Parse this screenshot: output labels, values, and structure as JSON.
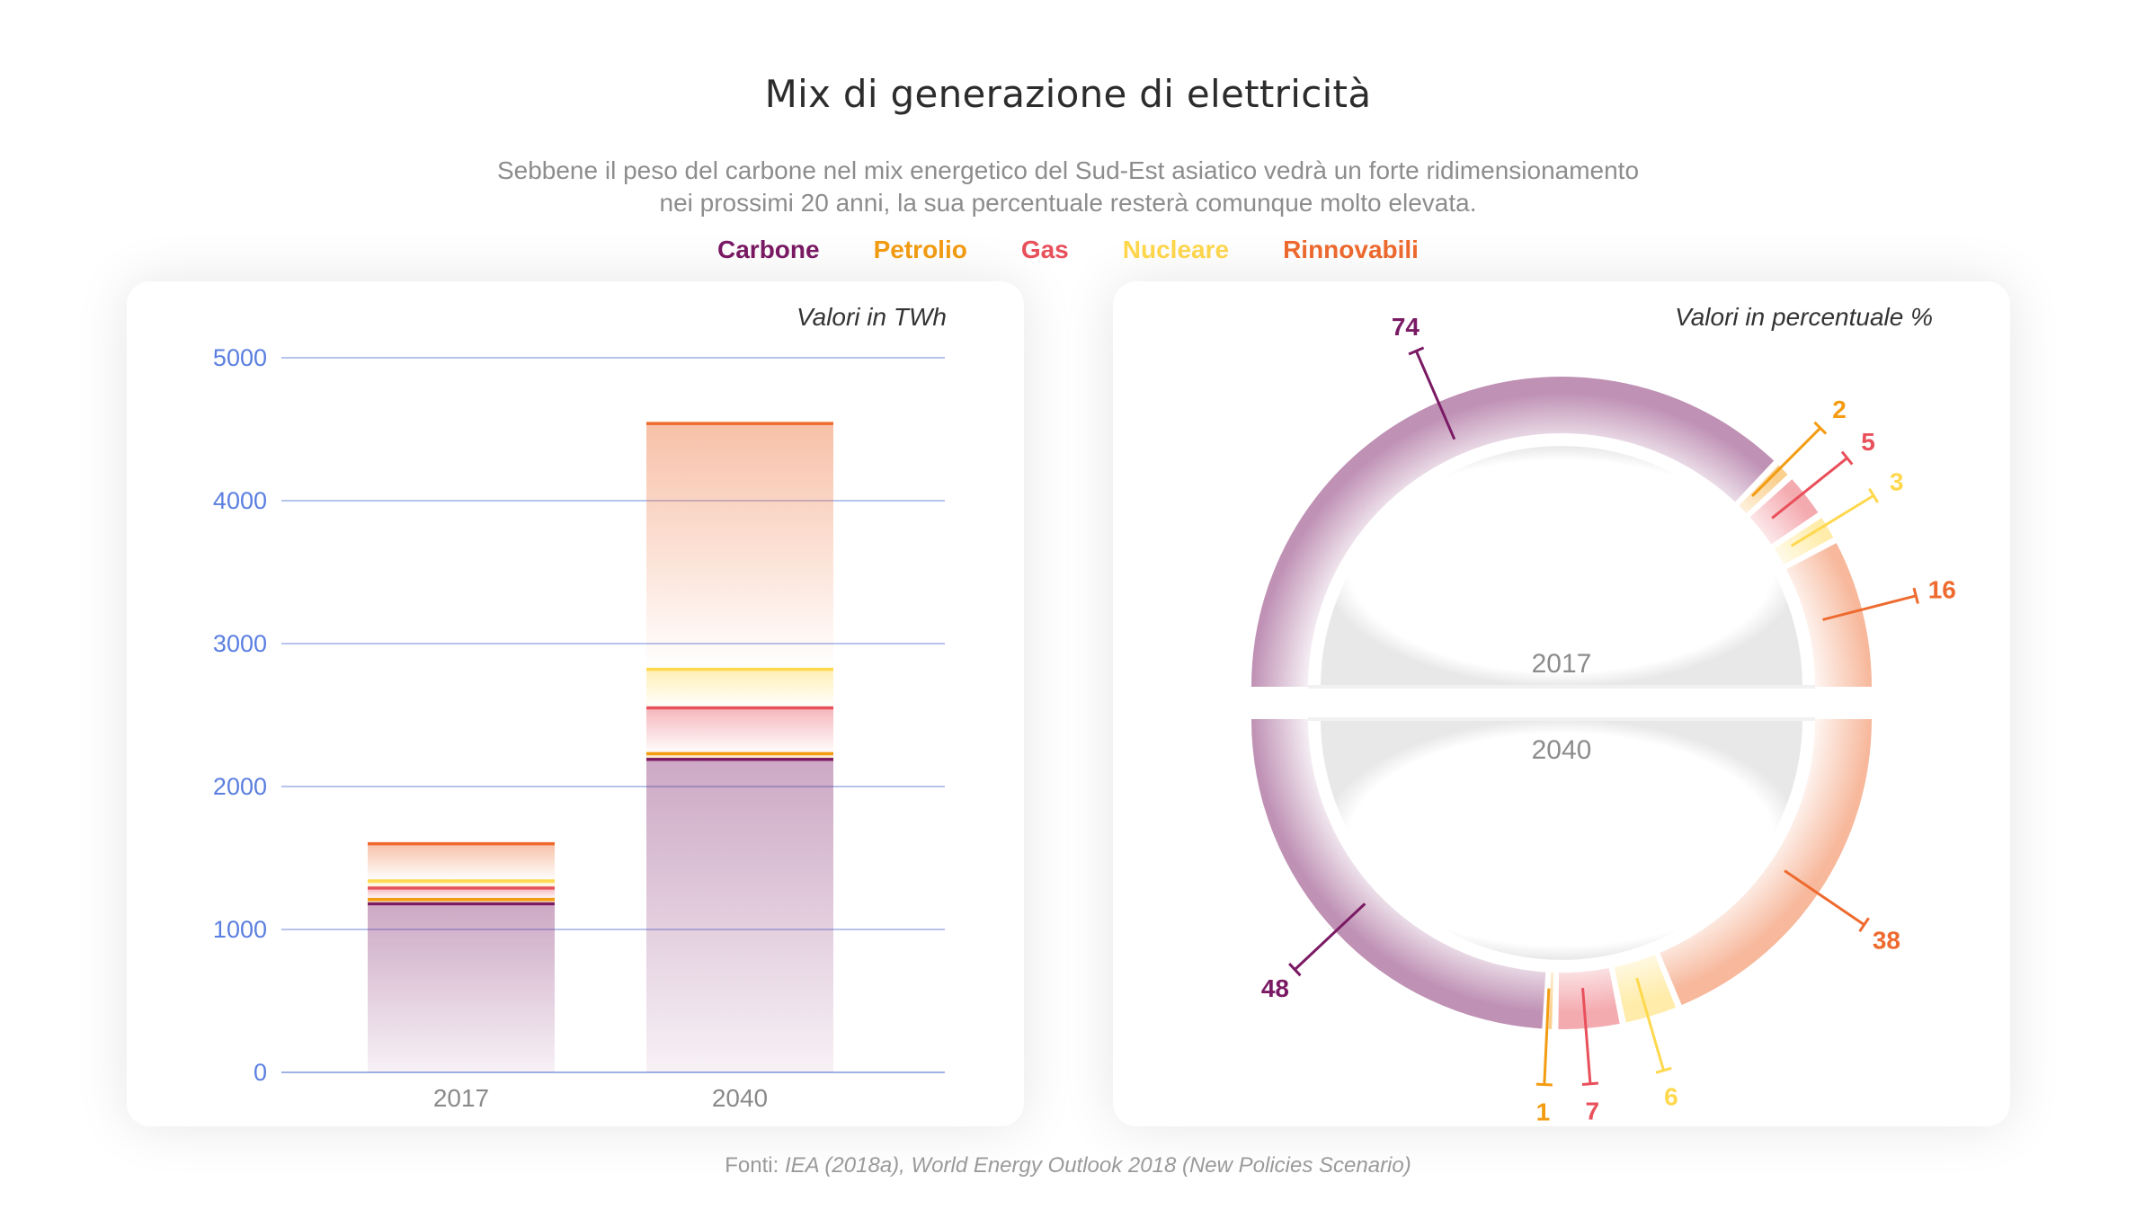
{
  "title": "Mix di generazione di elettricità",
  "subtitle_line1": "Sebbene il peso del carbone nel mix energetico del Sud-Est asiatico vedrà un forte ridimensionamento",
  "subtitle_line2": "nei prossimi 20 anni, la sua percentuale resterà comunque molto elevata.",
  "legend": [
    {
      "label": "Carbone",
      "color": "#7a1a64"
    },
    {
      "label": "Petrolio",
      "color": "#f39c12"
    },
    {
      "label": "Gas",
      "color": "#e8505b"
    },
    {
      "label": "Nucleare",
      "color": "#ffd84d"
    },
    {
      "label": "Rinnovabili",
      "color": "#ee6a2f"
    }
  ],
  "source_prefix": "Fonti: ",
  "source_text": "IEA (2018a), World Energy Outlook 2018 (New Policies Scenario)",
  "chart_data": [
    {
      "type": "bar",
      "stacked": true,
      "units_label": "Valori in TWh",
      "categories": [
        "2017",
        "2040"
      ],
      "series": [
        {
          "name": "Carbone",
          "color": "#7a1a64",
          "values": [
            1180,
            2190
          ]
        },
        {
          "name": "Petrolio",
          "color": "#f39c12",
          "values": [
            30,
            40
          ]
        },
        {
          "name": "Gas",
          "color": "#e8505b",
          "values": [
            80,
            320
          ]
        },
        {
          "name": "Nucleare",
          "color": "#ffd84d",
          "values": [
            50,
            270
          ]
        },
        {
          "name": "Rinnovabili",
          "color": "#ee6a2f",
          "values": [
            260,
            1720
          ]
        }
      ],
      "yticks": [
        0,
        1000,
        2000,
        3000,
        4000,
        5000
      ],
      "ylim": [
        0,
        5000
      ],
      "grid": true
    },
    {
      "type": "pie",
      "units_label": "Valori in percentuale %",
      "rings": [
        {
          "label": "2017",
          "slices": [
            {
              "name": "Carbone",
              "value": 74,
              "color": "#7a1a64"
            },
            {
              "name": "Petrolio",
              "value": 2,
              "color": "#f39c12"
            },
            {
              "name": "Gas",
              "value": 5,
              "color": "#e8505b"
            },
            {
              "name": "Nucleare",
              "value": 3,
              "color": "#ffd84d"
            },
            {
              "name": "Rinnovabili",
              "value": 16,
              "color": "#ee6a2f"
            }
          ]
        },
        {
          "label": "2040",
          "slices": [
            {
              "name": "Carbone",
              "value": 48,
              "color": "#7a1a64"
            },
            {
              "name": "Petrolio",
              "value": 1,
              "color": "#f39c12"
            },
            {
              "name": "Gas",
              "value": 7,
              "color": "#e8505b"
            },
            {
              "name": "Nucleare",
              "value": 6,
              "color": "#ffd84d"
            },
            {
              "name": "Rinnovabili",
              "value": 38,
              "color": "#ee6a2f"
            }
          ]
        }
      ]
    }
  ]
}
